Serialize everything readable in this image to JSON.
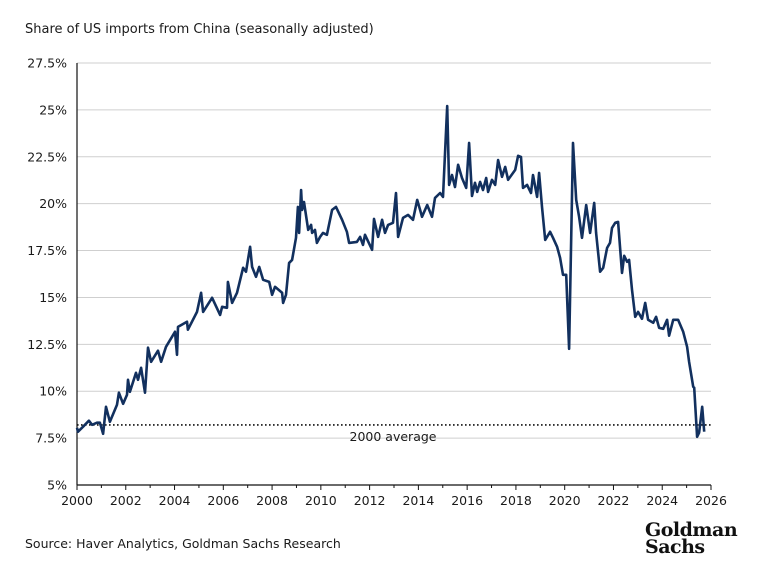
{
  "chart_data": {
    "type": "line",
    "title": "Share of US imports from China (seasonally adjusted)",
    "source": "Source: Haver Analytics, Goldman Sachs Research",
    "xlim": [
      2000,
      2026
    ],
    "ylim": [
      5,
      27.5
    ],
    "x_ticks": [
      "2000",
      "2002",
      "2004",
      "2006",
      "2008",
      "2010",
      "2012",
      "2014",
      "2016",
      "2018",
      "2020",
      "2022",
      "2024",
      "2026"
    ],
    "y_ticks": [
      "5%",
      "7.5%",
      "10%",
      "12.5%",
      "15%",
      "17.5%",
      "20%",
      "22.5%",
      "25%",
      "27.5%"
    ],
    "grid": "horizontal",
    "line_color": "#12305e",
    "reference_line": {
      "value": 8.2,
      "label": "2000 average",
      "style": "dotted"
    },
    "series": [
      {
        "points": [
          [
            2000.0,
            8.05
          ],
          [
            2000.04,
            7.84
          ],
          [
            2000.25,
            8.11
          ],
          [
            2000.49,
            8.43
          ],
          [
            2000.62,
            8.21
          ],
          [
            2000.82,
            8.32
          ],
          [
            2000.94,
            8.32
          ],
          [
            2001.07,
            7.73
          ],
          [
            2001.19,
            9.17
          ],
          [
            2001.35,
            8.37
          ],
          [
            2001.64,
            9.28
          ],
          [
            2001.72,
            9.92
          ],
          [
            2001.89,
            9.33
          ],
          [
            2002.05,
            9.81
          ],
          [
            2002.09,
            10.61
          ],
          [
            2002.17,
            9.97
          ],
          [
            2002.42,
            10.98
          ],
          [
            2002.5,
            10.61
          ],
          [
            2002.63,
            11.25
          ],
          [
            2002.79,
            9.92
          ],
          [
            2002.91,
            12.32
          ],
          [
            2003.04,
            11.57
          ],
          [
            2003.32,
            12.16
          ],
          [
            2003.45,
            11.57
          ],
          [
            2003.65,
            12.37
          ],
          [
            2004.02,
            13.17
          ],
          [
            2004.1,
            11.94
          ],
          [
            2004.14,
            13.43
          ],
          [
            2004.51,
            13.7
          ],
          [
            2004.55,
            13.28
          ],
          [
            2004.92,
            14.23
          ],
          [
            2005.09,
            15.25
          ],
          [
            2005.17,
            14.23
          ],
          [
            2005.54,
            14.98
          ],
          [
            2005.87,
            14.07
          ],
          [
            2005.95,
            14.5
          ],
          [
            2006.15,
            14.45
          ],
          [
            2006.19,
            15.83
          ],
          [
            2006.36,
            14.71
          ],
          [
            2006.56,
            15.25
          ],
          [
            2006.81,
            16.58
          ],
          [
            2006.93,
            16.37
          ],
          [
            2007.1,
            17.7
          ],
          [
            2007.18,
            16.63
          ],
          [
            2007.34,
            16.1
          ],
          [
            2007.47,
            16.63
          ],
          [
            2007.63,
            15.94
          ],
          [
            2007.88,
            15.83
          ],
          [
            2008.0,
            15.14
          ],
          [
            2008.12,
            15.57
          ],
          [
            2008.41,
            15.25
          ],
          [
            2008.45,
            14.71
          ],
          [
            2008.57,
            15.14
          ],
          [
            2008.7,
            16.84
          ],
          [
            2008.82,
            17.0
          ],
          [
            2008.98,
            18.18
          ],
          [
            2009.06,
            19.83
          ],
          [
            2009.11,
            18.44
          ],
          [
            2009.19,
            20.73
          ],
          [
            2009.23,
            19.67
          ],
          [
            2009.31,
            20.09
          ],
          [
            2009.48,
            18.6
          ],
          [
            2009.6,
            18.87
          ],
          [
            2009.64,
            18.44
          ],
          [
            2009.76,
            18.6
          ],
          [
            2009.84,
            17.91
          ],
          [
            2009.97,
            18.23
          ],
          [
            2010.09,
            18.44
          ],
          [
            2010.25,
            18.34
          ],
          [
            2010.46,
            19.67
          ],
          [
            2010.62,
            19.83
          ],
          [
            2010.87,
            19.14
          ],
          [
            2011.07,
            18.5
          ],
          [
            2011.16,
            17.91
          ],
          [
            2011.48,
            17.96
          ],
          [
            2011.61,
            18.23
          ],
          [
            2011.73,
            17.8
          ],
          [
            2011.81,
            18.34
          ],
          [
            2012.1,
            17.54
          ],
          [
            2012.18,
            19.19
          ],
          [
            2012.35,
            18.23
          ],
          [
            2012.51,
            19.14
          ],
          [
            2012.63,
            18.44
          ],
          [
            2012.76,
            18.87
          ],
          [
            2012.96,
            18.98
          ],
          [
            2013.08,
            20.57
          ],
          [
            2013.17,
            18.23
          ],
          [
            2013.37,
            19.24
          ],
          [
            2013.58,
            19.4
          ],
          [
            2013.78,
            19.14
          ],
          [
            2013.95,
            20.2
          ],
          [
            2014.07,
            19.67
          ],
          [
            2014.15,
            19.3
          ],
          [
            2014.36,
            19.93
          ],
          [
            2014.56,
            19.3
          ],
          [
            2014.68,
            20.31
          ],
          [
            2014.89,
            20.57
          ],
          [
            2015.01,
            20.36
          ],
          [
            2015.18,
            25.21
          ],
          [
            2015.26,
            21.0
          ],
          [
            2015.38,
            21.53
          ],
          [
            2015.5,
            20.89
          ],
          [
            2015.63,
            22.07
          ],
          [
            2015.79,
            21.37
          ],
          [
            2015.96,
            20.84
          ],
          [
            2016.08,
            23.24
          ],
          [
            2016.2,
            20.41
          ],
          [
            2016.32,
            21.11
          ],
          [
            2016.41,
            20.63
          ],
          [
            2016.53,
            21.16
          ],
          [
            2016.65,
            20.73
          ],
          [
            2016.78,
            21.37
          ],
          [
            2016.86,
            20.63
          ],
          [
            2017.02,
            21.27
          ],
          [
            2017.15,
            21.0
          ],
          [
            2017.27,
            22.33
          ],
          [
            2017.43,
            21.43
          ],
          [
            2017.56,
            21.96
          ],
          [
            2017.68,
            21.27
          ],
          [
            2017.97,
            21.8
          ],
          [
            2018.09,
            22.55
          ],
          [
            2018.21,
            22.49
          ],
          [
            2018.29,
            20.84
          ],
          [
            2018.46,
            21.0
          ],
          [
            2018.62,
            20.57
          ],
          [
            2018.7,
            21.53
          ],
          [
            2018.87,
            20.36
          ],
          [
            2018.95,
            21.64
          ],
          [
            2019.07,
            19.83
          ],
          [
            2019.2,
            18.07
          ],
          [
            2019.4,
            18.5
          ],
          [
            2019.52,
            18.18
          ],
          [
            2019.69,
            17.7
          ],
          [
            2019.81,
            17.11
          ],
          [
            2019.93,
            16.21
          ],
          [
            2020.06,
            16.21
          ],
          [
            2020.18,
            12.26
          ],
          [
            2020.34,
            23.24
          ],
          [
            2020.47,
            20.2
          ],
          [
            2020.59,
            19.3
          ],
          [
            2020.71,
            18.18
          ],
          [
            2020.88,
            19.93
          ],
          [
            2021.04,
            18.44
          ],
          [
            2021.21,
            20.04
          ],
          [
            2021.29,
            18.44
          ],
          [
            2021.45,
            16.37
          ],
          [
            2021.58,
            16.58
          ],
          [
            2021.74,
            17.64
          ],
          [
            2021.86,
            17.91
          ],
          [
            2021.94,
            18.71
          ],
          [
            2022.07,
            18.98
          ],
          [
            2022.19,
            19.03
          ],
          [
            2022.35,
            16.31
          ],
          [
            2022.44,
            17.22
          ],
          [
            2022.56,
            16.9
          ],
          [
            2022.64,
            17.0
          ],
          [
            2022.76,
            15.41
          ],
          [
            2022.89,
            13.97
          ],
          [
            2023.01,
            14.23
          ],
          [
            2023.17,
            13.86
          ],
          [
            2023.3,
            14.71
          ],
          [
            2023.42,
            13.81
          ],
          [
            2023.63,
            13.65
          ],
          [
            2023.75,
            13.97
          ],
          [
            2023.87,
            13.38
          ],
          [
            2024.04,
            13.33
          ],
          [
            2024.2,
            13.81
          ],
          [
            2024.28,
            12.96
          ],
          [
            2024.45,
            13.81
          ],
          [
            2024.65,
            13.81
          ],
          [
            2024.86,
            13.17
          ],
          [
            2025.02,
            12.37
          ],
          [
            2025.1,
            11.57
          ],
          [
            2025.27,
            10.24
          ],
          [
            2025.31,
            10.19
          ],
          [
            2025.43,
            7.57
          ],
          [
            2025.51,
            7.79
          ],
          [
            2025.64,
            9.17
          ],
          [
            2025.72,
            7.84
          ]
        ]
      }
    ]
  },
  "logo": {
    "line1": "Goldman",
    "line2": "Sachs"
  }
}
